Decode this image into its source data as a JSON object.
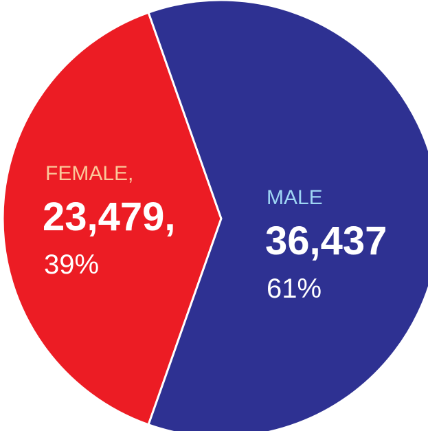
{
  "chart_data": {
    "type": "pie",
    "categories": [
      "FEMALE,",
      "MALE"
    ],
    "values": [
      23479,
      36437
    ],
    "value_labels": [
      "23,479,",
      "36,437"
    ],
    "percentages": [
      39,
      61
    ],
    "percentage_labels": [
      "39%",
      "61%"
    ],
    "colors": [
      "#ec1c24",
      "#2e3192"
    ],
    "label_colors": [
      "#fbc89a",
      "#9fd6f4"
    ]
  }
}
